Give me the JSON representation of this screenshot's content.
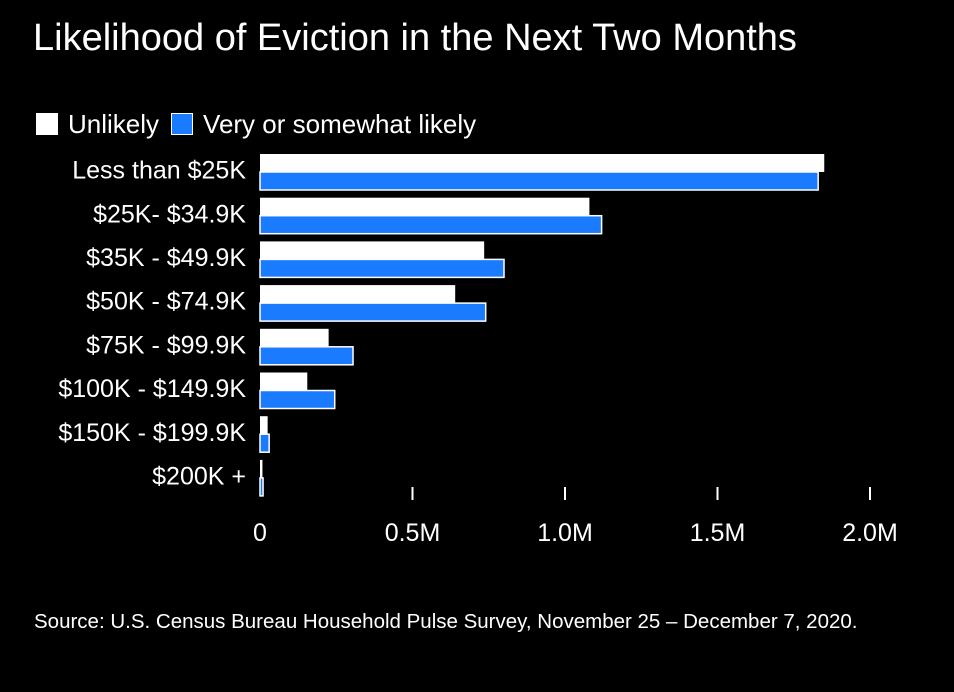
{
  "chart_data": {
    "type": "bar",
    "orientation": "horizontal",
    "title": "Likelihood of Eviction in the Next Two Months",
    "categories": [
      "Less than $25K",
      "$25K- $34.9K",
      "$35K - $49.9K",
      "$50K - $74.9K",
      "$75K - $99.9K",
      "$100K - $149.9K",
      "$150K - $199.9K",
      "$200K +"
    ],
    "series": [
      {
        "name": "Unlikely",
        "color": "#ffffff",
        "values": [
          1850000,
          1080000,
          735000,
          640000,
          225000,
          155000,
          25000,
          8000
        ]
      },
      {
        "name": "Very or somewhat likely",
        "color": "#1a7bff",
        "values": [
          1830000,
          1120000,
          800000,
          740000,
          305000,
          245000,
          30000,
          10000
        ]
      }
    ],
    "xlim": [
      0,
      2000000
    ],
    "x_ticks": [
      0,
      500000,
      1000000,
      1500000,
      2000000
    ],
    "x_tick_labels": [
      "0",
      "0.5M",
      "1.0M",
      "1.5M",
      "2.0M"
    ],
    "legend_position": "top-left",
    "grid": false,
    "source": "Source: U.S. Census Bureau Household Pulse Survey, November 25 – December 7, 2020."
  }
}
